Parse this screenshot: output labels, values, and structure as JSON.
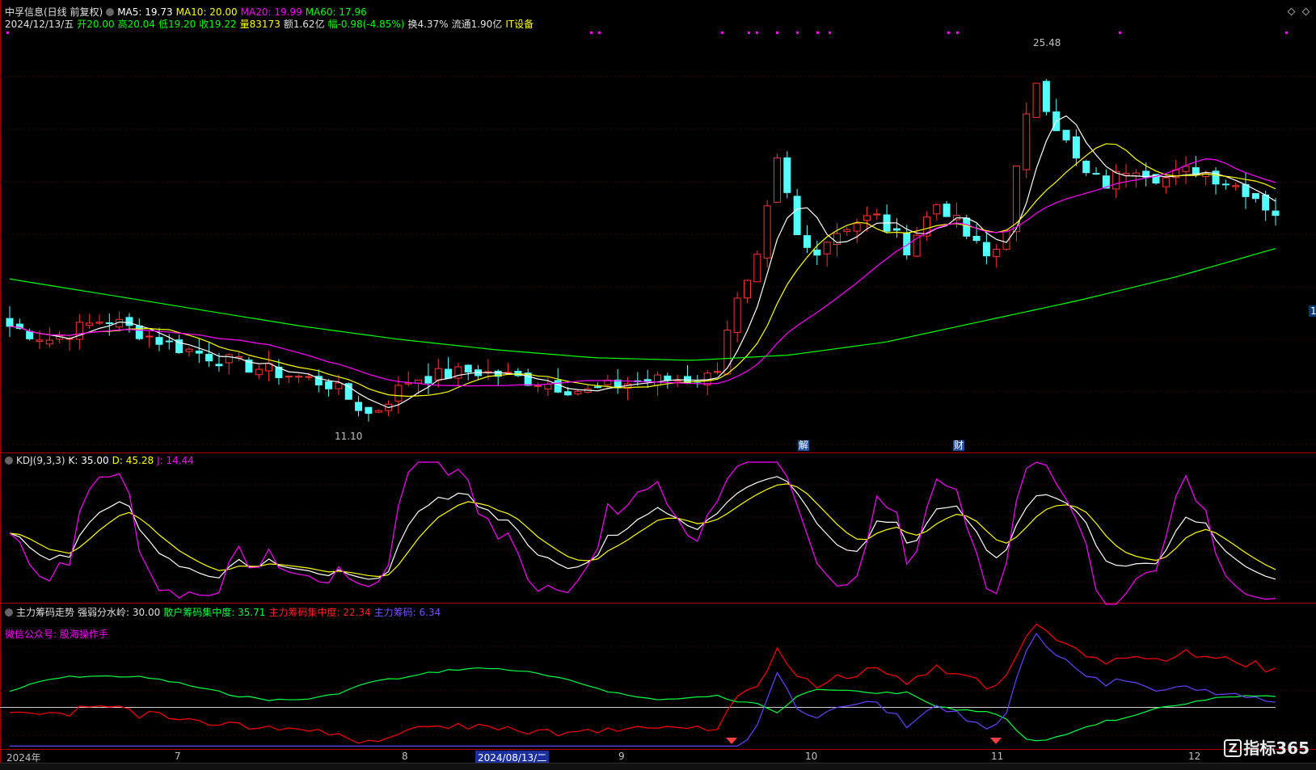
{
  "main": {
    "title": "中孚信息(日线 前复权)",
    "ma5": "MA5: 19.73",
    "ma10": "MA10: 20.00",
    "ma20": "MA20: 19.99",
    "ma60": "MA60: 17.96",
    "date": "2024/12/13/五",
    "open": "开20.00",
    "high": "高20.04",
    "low": "低19.20",
    "close": "收19.22",
    "volume": "量83173",
    "amount": "额1.62亿",
    "change": "幅-0.98(-4.85%)",
    "turnover": "换4.37%",
    "float": "流通1.90亿",
    "sector": "IT设备",
    "max_label": "25.48",
    "min_label": "11.10",
    "right_badge": "1",
    "event_jie": "解",
    "event_cai": "财"
  },
  "kdj": {
    "name": "KDJ(9,3,3)",
    "k": "K: 35.00",
    "d": "D: 45.28",
    "j": "J: 14.44"
  },
  "chip": {
    "name": "主力筹码走势",
    "threshold": "强弱分水岭: 30.00",
    "retail": "散户筹码集中度: 35.71",
    "main_conc": "主力筹码集中度: 22.34",
    "main_chip": "主力筹码: 6.34",
    "wechat": "微信公众号: 股海操作手"
  },
  "axis": {
    "year": "2024年",
    "m7": "7",
    "m8": "8",
    "cursor_date": "2024/08/13/二",
    "m9": "9",
    "m10": "10",
    "m11": "11",
    "m12": "12"
  },
  "watermark": "指标365",
  "colors": {
    "up": "#ff3232",
    "down": "#54ffff",
    "ma5": "#ffffff",
    "ma10": "#ffff00",
    "ma20": "#ff00ff",
    "ma60": "#00ff00",
    "kdj_j": "#ff00ff",
    "chip_red": "#ff0000",
    "chip_green": "#00ff40",
    "chip_blue": "#6a40ff"
  },
  "chart_data": {
    "type": "candlestick",
    "title": "中孚信息(日线 前复权)",
    "x_range": [
      "2024-06",
      "2024-12-13"
    ],
    "price_range": [
      11.1,
      25.48
    ],
    "last_close": 19.22,
    "indicators": [
      "MA5",
      "MA10",
      "MA20",
      "MA60",
      "KDJ(9,3,3)",
      "主力筹码走势"
    ]
  }
}
